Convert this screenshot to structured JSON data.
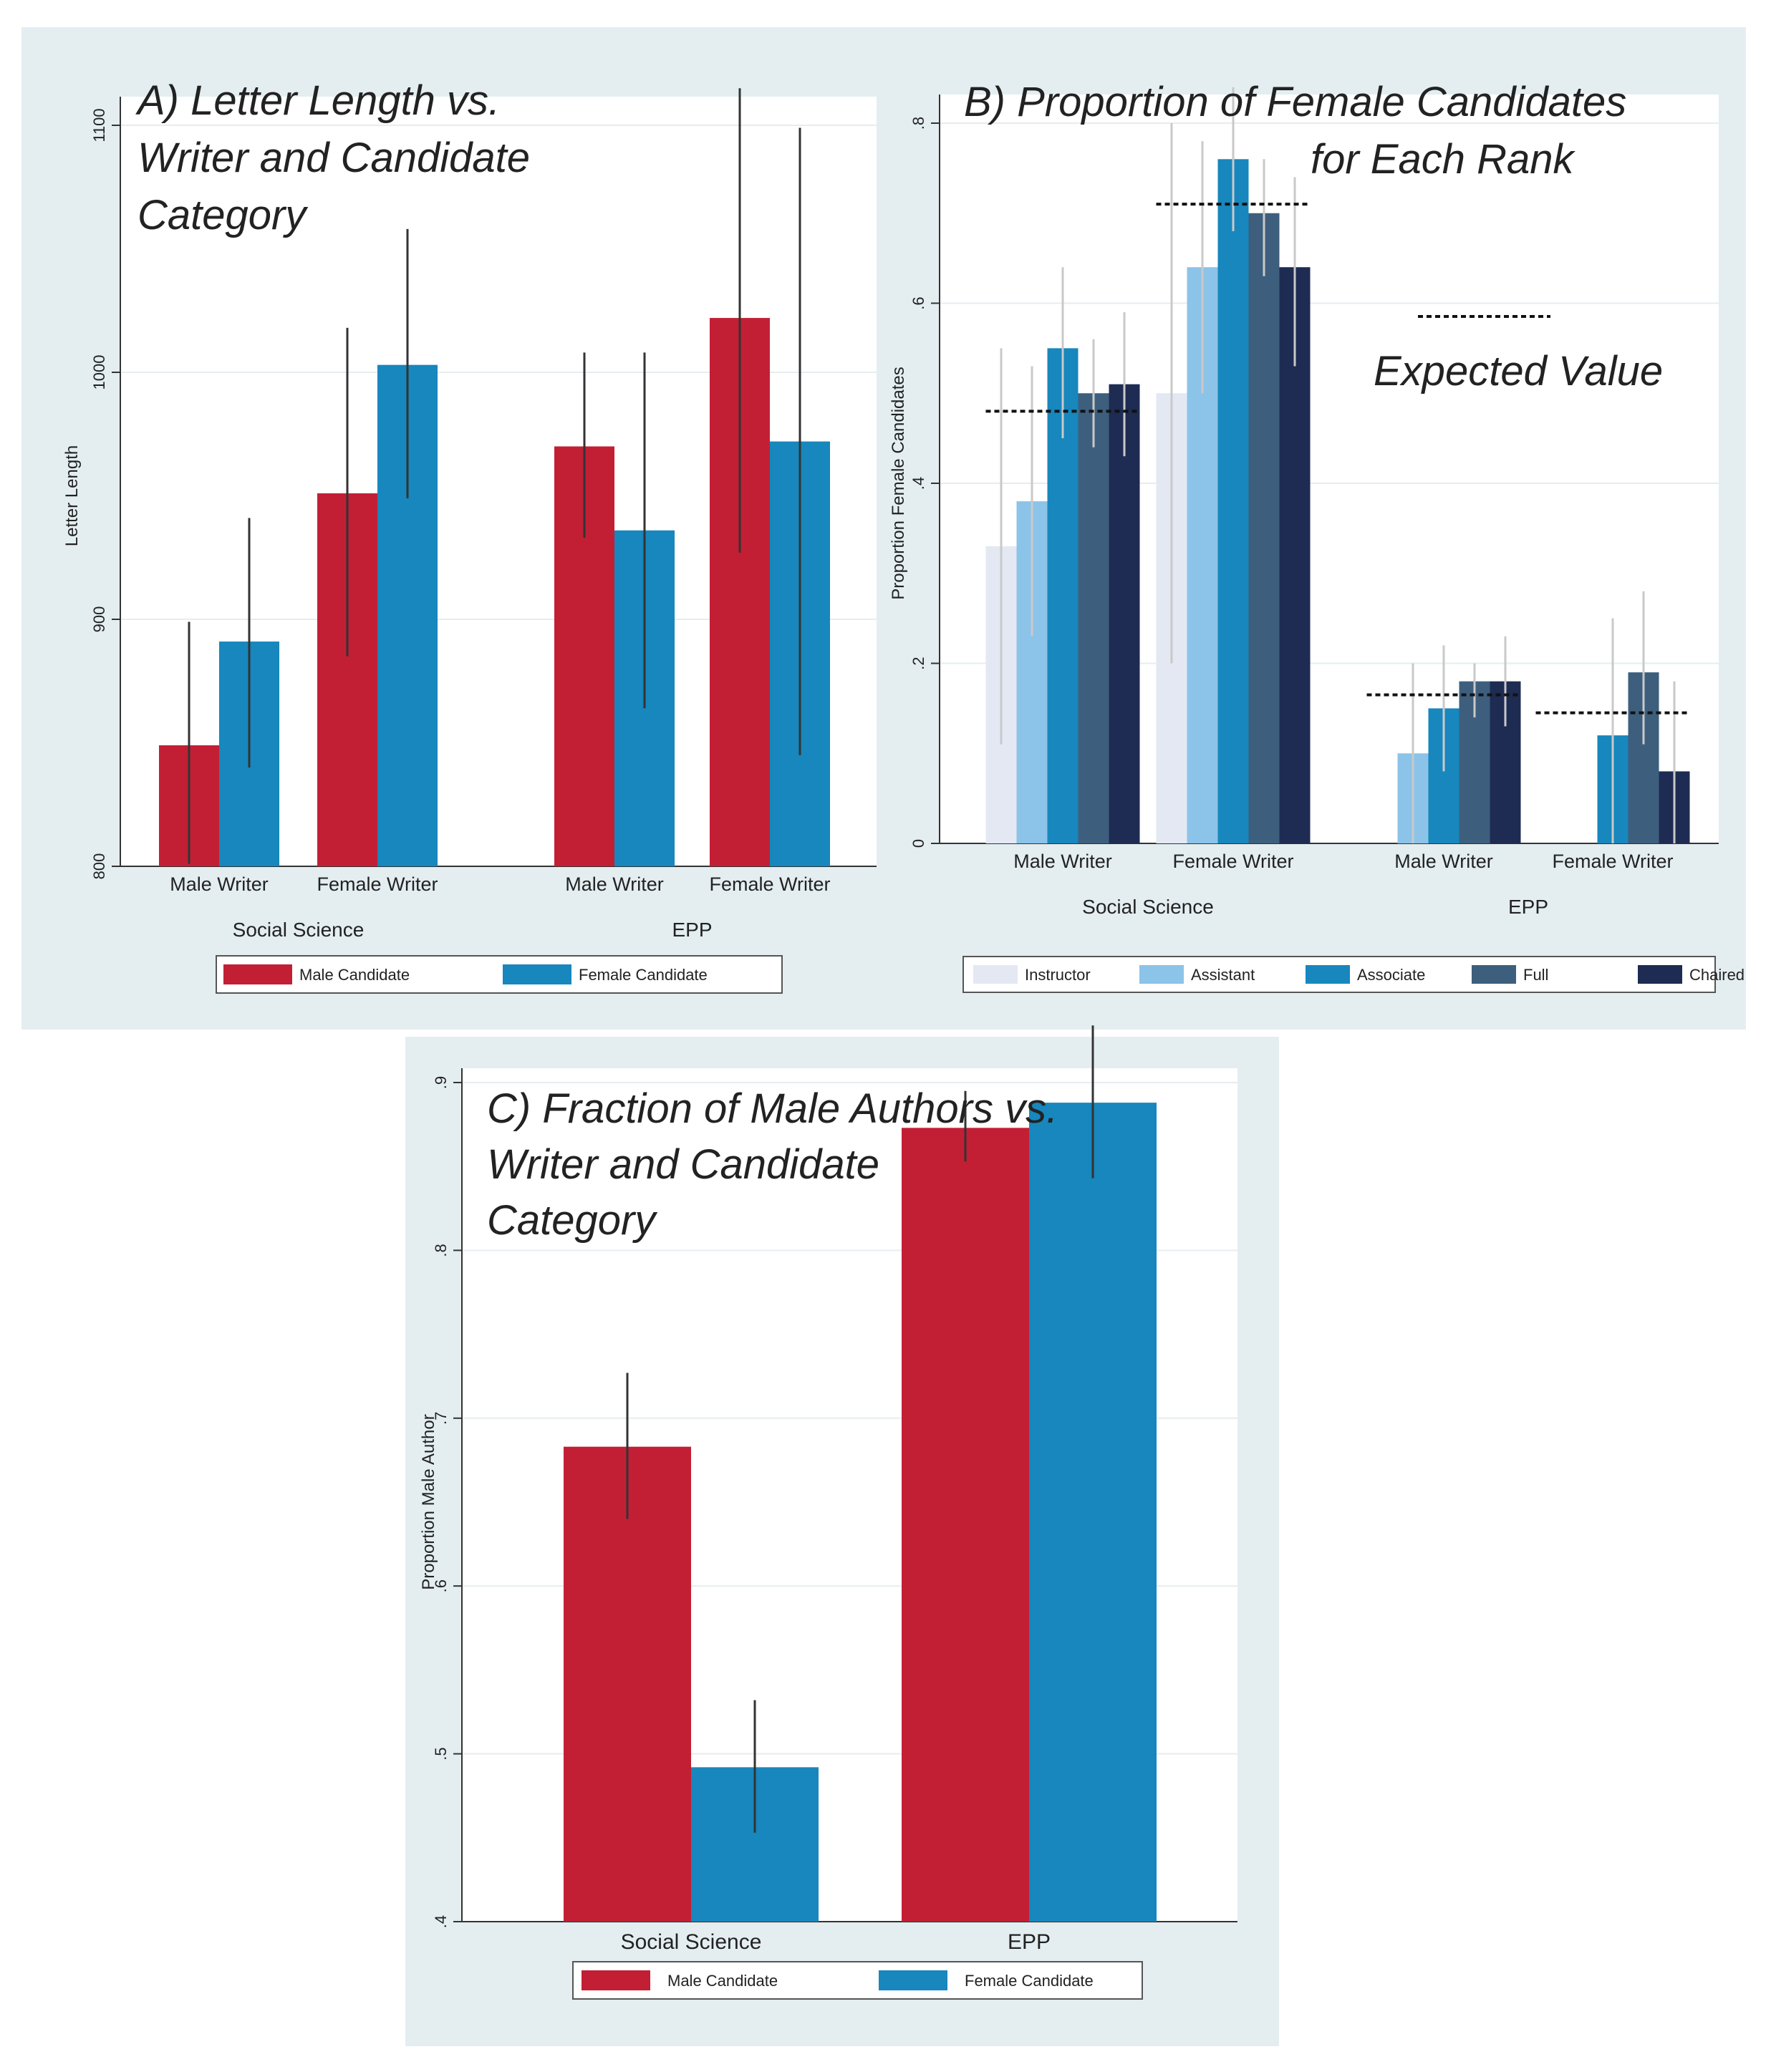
{
  "chart_data": [
    {
      "id": "A",
      "type": "bar",
      "title_lines": [
        "A) Letter Length vs.",
        "Writer and Candidate",
        "Category"
      ],
      "ylabel": "Letter Length",
      "ylim": [
        800,
        1100
      ],
      "yticks": [
        800,
        900,
        1000,
        1100
      ],
      "groups": [
        {
          "name": "Social Science",
          "categories": [
            "Male Writer",
            "Female Writer"
          ]
        },
        {
          "name": "EPP",
          "categories": [
            "Male Writer",
            "Female Writer"
          ]
        }
      ],
      "series": [
        {
          "name": "Male Candidate",
          "color": "#c21f35",
          "values": [
            849,
            951,
            970,
            1022
          ],
          "ci_low": [
            801,
            885,
            933,
            927
          ],
          "ci_high": [
            899,
            1018,
            1008,
            1115
          ]
        },
        {
          "name": "Female Candidate",
          "color": "#1787bd",
          "values": [
            891,
            1003,
            936,
            972
          ],
          "ci_low": [
            840,
            949,
            864,
            845
          ],
          "ci_high": [
            941,
            1058,
            1008,
            1099
          ]
        }
      ]
    },
    {
      "id": "B",
      "type": "bar",
      "title_lines": [
        "B) Proportion of Female Candidates",
        "for Each Rank"
      ],
      "ylabel": "Proportion Female Candidates",
      "ylim": [
        0,
        0.8
      ],
      "yticks": [
        0,
        0.2,
        0.4,
        0.6,
        0.8
      ],
      "ytick_labels": [
        "0",
        ".2",
        ".4",
        ".6",
        ".8"
      ],
      "groups": [
        {
          "name": "Social Science",
          "categories": [
            "Male Writer",
            "Female Writer"
          ]
        },
        {
          "name": "EPP",
          "categories": [
            "Male Writer",
            "Female Writer"
          ]
        }
      ],
      "series": [
        {
          "name": "Instructor",
          "color": "#e3e8f3",
          "values": [
            0.33,
            0.5,
            null,
            null
          ],
          "ci_low": [
            0.11,
            0.2,
            null,
            null
          ],
          "ci_high": [
            0.55,
            0.8,
            null,
            null
          ]
        },
        {
          "name": "Assistant",
          "color": "#8cc3e8",
          "values": [
            0.38,
            0.64,
            0.1,
            null
          ],
          "ci_low": [
            0.23,
            0.5,
            0.0,
            null
          ],
          "ci_high": [
            0.53,
            0.78,
            0.2,
            null
          ]
        },
        {
          "name": "Associate",
          "color": "#1787bd",
          "values": [
            0.55,
            0.76,
            0.15,
            0.12
          ],
          "ci_low": [
            0.45,
            0.68,
            0.08,
            -0.01
          ],
          "ci_high": [
            0.64,
            0.84,
            0.22,
            0.25
          ]
        },
        {
          "name": "Full",
          "color": "#3d5f7d",
          "values": [
            0.5,
            0.7,
            0.18,
            0.19
          ],
          "ci_low": [
            0.44,
            0.63,
            0.14,
            0.11
          ],
          "ci_high": [
            0.56,
            0.76,
            0.2,
            0.28
          ]
        },
        {
          "name": "Chaired",
          "color": "#1e2b52",
          "values": [
            0.51,
            0.64,
            0.18,
            0.08
          ],
          "ci_low": [
            0.43,
            0.53,
            0.13,
            -0.01
          ],
          "ci_high": [
            0.59,
            0.74,
            0.23,
            0.18
          ]
        }
      ],
      "expected_values": [
        0.48,
        0.71,
        0.165,
        0.145
      ],
      "expected_label": "Expected Value"
    },
    {
      "id": "C",
      "type": "bar",
      "title_lines": [
        "C) Fraction of Male Authors  vs.",
        "Writer and Candidate",
        "Category"
      ],
      "ylabel": "Proportion Male Author",
      "ylim": [
        0.4,
        0.9
      ],
      "yticks": [
        0.4,
        0.5,
        0.6,
        0.7,
        0.8,
        0.9
      ],
      "ytick_labels": [
        ".4",
        ".5",
        ".6",
        ".7",
        ".8",
        ".9"
      ],
      "categories": [
        "Social Science",
        "EPP"
      ],
      "series": [
        {
          "name": "Male Candidate",
          "color": "#c21f35",
          "values": [
            0.683,
            0.873
          ],
          "ci_low": [
            0.64,
            0.853
          ],
          "ci_high": [
            0.727,
            0.895
          ]
        },
        {
          "name": "Female Candidate",
          "color": "#1787bd",
          "values": [
            0.492,
            0.888
          ],
          "ci_low": [
            0.453,
            0.843
          ],
          "ci_high": [
            0.532,
            0.934
          ]
        }
      ]
    }
  ]
}
